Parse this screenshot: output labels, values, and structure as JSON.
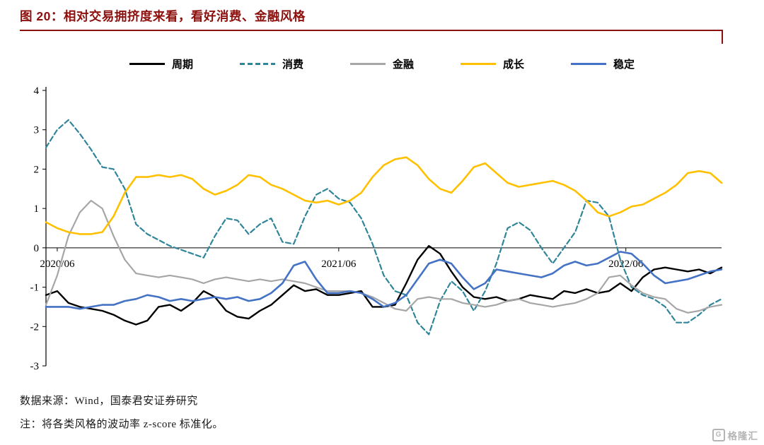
{
  "header": {
    "title": "图 20：相对交易拥挤度来看，看好消费、金融风格",
    "accent_color": "#8c100d"
  },
  "footer": {
    "source": "数据来源：Wind，国泰君安证券研究",
    "note": "注：将各类风格的波动率 z-score 标准化。"
  },
  "watermark": {
    "icon": "gelonghui-logo",
    "icon_letter": "G",
    "text": "格隆汇"
  },
  "chart_data": {
    "type": "line",
    "title": "",
    "xlabel": "",
    "ylabel": "",
    "ylim": [
      -3,
      4
    ],
    "yticks": [
      4,
      3,
      2,
      1,
      0,
      -1,
      -2,
      -3
    ],
    "grid": false,
    "legend_position": "top",
    "n": 61,
    "x_axis_labels": [
      {
        "text": "2020/06",
        "pos": 1
      },
      {
        "text": "2021/06",
        "pos": 26
      },
      {
        "text": "2022/06",
        "pos": 51.5
      }
    ],
    "series": [
      {
        "key": "cycle",
        "name": "周期",
        "color": "#000000",
        "dash": null,
        "width": 2.4,
        "values": [
          -1.2,
          -1.1,
          -1.4,
          -1.5,
          -1.55,
          -1.6,
          -1.7,
          -1.85,
          -1.95,
          -1.85,
          -1.5,
          -1.45,
          -1.6,
          -1.4,
          -1.1,
          -1.25,
          -1.6,
          -1.75,
          -1.8,
          -1.6,
          -1.45,
          -1.2,
          -0.95,
          -1.1,
          -1.05,
          -1.2,
          -1.2,
          -1.15,
          -1.1,
          -1.5,
          -1.5,
          -1.45,
          -0.9,
          -0.3,
          0.05,
          -0.15,
          -0.6,
          -1.0,
          -1.25,
          -1.3,
          -1.25,
          -1.35,
          -1.3,
          -1.2,
          -1.25,
          -1.3,
          -1.1,
          -1.15,
          -1.05,
          -1.15,
          -1.1,
          -0.9,
          -1.1,
          -0.75,
          -0.55,
          -0.5,
          -0.55,
          -0.6,
          -0.55,
          -0.65,
          -0.5
        ]
      },
      {
        "key": "consumption",
        "name": "消费",
        "color": "#31859b",
        "dash": "7 4",
        "width": 2.2,
        "values": [
          2.55,
          3.0,
          3.25,
          2.9,
          2.5,
          2.05,
          2.0,
          1.5,
          0.6,
          0.35,
          0.2,
          0.05,
          -0.05,
          -0.15,
          -0.25,
          0.3,
          0.75,
          0.7,
          0.35,
          0.6,
          0.75,
          0.15,
          0.1,
          0.8,
          1.35,
          1.5,
          1.25,
          1.15,
          0.75,
          0.1,
          -0.7,
          -1.1,
          -1.2,
          -1.9,
          -2.2,
          -1.35,
          -0.85,
          -1.1,
          -1.6,
          -1.1,
          -0.4,
          0.5,
          0.65,
          0.45,
          0.0,
          -0.4,
          0.0,
          0.4,
          1.2,
          1.15,
          0.8,
          -0.3,
          -1.0,
          -1.2,
          -1.3,
          -1.5,
          -1.9,
          -1.9,
          -1.7,
          -1.45,
          -1.3
        ]
      },
      {
        "key": "finance",
        "name": "金融",
        "color": "#a6a6a6",
        "dash": null,
        "width": 2.2,
        "values": [
          -1.45,
          -0.7,
          0.3,
          0.9,
          1.2,
          1.0,
          0.3,
          -0.3,
          -0.65,
          -0.7,
          -0.75,
          -0.7,
          -0.75,
          -0.8,
          -0.9,
          -0.8,
          -0.75,
          -0.8,
          -0.85,
          -0.8,
          -0.85,
          -0.8,
          -0.85,
          -0.9,
          -1.0,
          -1.1,
          -1.1,
          -1.1,
          -1.15,
          -1.25,
          -1.4,
          -1.55,
          -1.6,
          -1.3,
          -1.25,
          -1.3,
          -1.3,
          -1.4,
          -1.45,
          -1.5,
          -1.45,
          -1.35,
          -1.3,
          -1.4,
          -1.45,
          -1.5,
          -1.45,
          -1.4,
          -1.3,
          -1.15,
          -0.75,
          -0.7,
          -0.95,
          -1.15,
          -1.25,
          -1.3,
          -1.55,
          -1.65,
          -1.6,
          -1.5,
          -1.45
        ]
      },
      {
        "key": "growth",
        "name": "成长",
        "color": "#ffc000",
        "dash": null,
        "width": 2.6,
        "values": [
          0.65,
          0.5,
          0.4,
          0.35,
          0.35,
          0.4,
          0.8,
          1.4,
          1.8,
          1.8,
          1.85,
          1.8,
          1.85,
          1.75,
          1.5,
          1.35,
          1.45,
          1.6,
          1.85,
          1.8,
          1.6,
          1.5,
          1.35,
          1.2,
          1.15,
          1.2,
          1.1,
          1.2,
          1.4,
          1.8,
          2.1,
          2.25,
          2.3,
          2.1,
          1.75,
          1.5,
          1.4,
          1.7,
          2.05,
          2.15,
          1.9,
          1.65,
          1.55,
          1.6,
          1.65,
          1.7,
          1.6,
          1.45,
          1.2,
          0.9,
          0.8,
          0.9,
          1.05,
          1.1,
          1.25,
          1.4,
          1.6,
          1.9,
          1.95,
          1.9,
          1.65
        ]
      },
      {
        "key": "stability",
        "name": "稳定",
        "color": "#4472c4",
        "dash": null,
        "width": 2.6,
        "values": [
          -1.5,
          -1.5,
          -1.5,
          -1.55,
          -1.5,
          -1.45,
          -1.45,
          -1.35,
          -1.3,
          -1.2,
          -1.25,
          -1.35,
          -1.3,
          -1.35,
          -1.3,
          -1.25,
          -1.3,
          -1.25,
          -1.35,
          -1.3,
          -1.15,
          -0.9,
          -0.45,
          -0.35,
          -0.8,
          -1.15,
          -1.15,
          -1.1,
          -1.15,
          -1.3,
          -1.5,
          -1.4,
          -1.2,
          -0.8,
          -0.4,
          -0.3,
          -0.4,
          -0.75,
          -1.05,
          -0.9,
          -0.55,
          -0.6,
          -0.65,
          -0.7,
          -0.75,
          -0.65,
          -0.45,
          -0.35,
          -0.45,
          -0.4,
          -0.25,
          -0.1,
          -0.15,
          -0.4,
          -0.7,
          -0.9,
          -0.85,
          -0.8,
          -0.7,
          -0.6,
          -0.55
        ]
      }
    ]
  }
}
